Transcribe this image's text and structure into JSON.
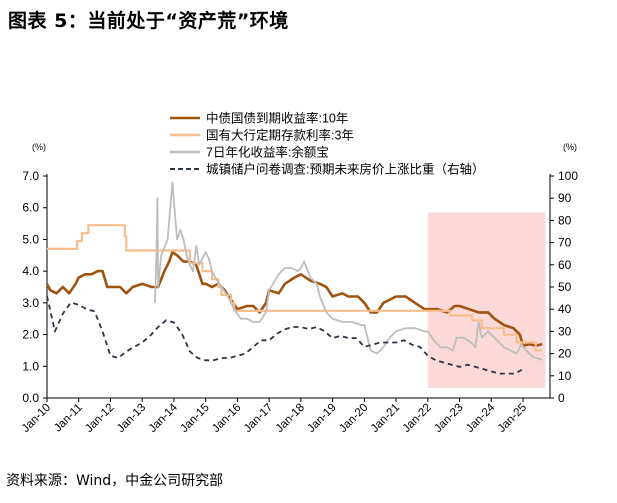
{
  "figure": {
    "title": "图表 5：当前处于“资产荒”环境",
    "source": "资料来源：Wind，中金公司研究部"
  },
  "chart_data": {
    "type": "line",
    "x_tick_labels": [
      "Jan-10",
      "Jan-11",
      "Jan-12",
      "Jan-13",
      "Jan-14",
      "Jan-15",
      "Jan-16",
      "Jan-17",
      "Jan-18",
      "Jan-19",
      "Jan-20",
      "Jan-21",
      "Jan-22",
      "Jan-23",
      "Jan-24",
      "Jan-25"
    ],
    "left_axis": {
      "unit_label": "(%)",
      "ylim": [
        0,
        7
      ],
      "ticks": [
        "0.0",
        "1.0",
        "2.0",
        "3.0",
        "4.0",
        "5.0",
        "6.0",
        "7.0"
      ]
    },
    "right_axis": {
      "unit_label": "(%)",
      "ylim": [
        0,
        100
      ],
      "ticks": [
        "0",
        "10",
        "20",
        "30",
        "40",
        "50",
        "60",
        "70",
        "80",
        "90",
        "100"
      ]
    },
    "shaded_region": {
      "x_start": 2022.0,
      "x_end": 2025.7,
      "y_top_left_axis": 5.85,
      "color": "#fbd9d9"
    },
    "grid": false,
    "legend_position": "top-center",
    "series": [
      {
        "name": "中债国债到期收益率:10年",
        "axis": "left",
        "color": "#a0520f",
        "style": "solid",
        "width": 2.6,
        "points": [
          [
            2010.0,
            3.6
          ],
          [
            2010.1,
            3.4
          ],
          [
            2010.3,
            3.3
          ],
          [
            2010.5,
            3.5
          ],
          [
            2010.7,
            3.3
          ],
          [
            2010.9,
            3.6
          ],
          [
            2011.0,
            3.8
          ],
          [
            2011.2,
            3.9
          ],
          [
            2011.4,
            3.9
          ],
          [
            2011.6,
            4.0
          ],
          [
            2011.75,
            4.0
          ],
          [
            2011.9,
            3.5
          ],
          [
            2012.0,
            3.5
          ],
          [
            2012.3,
            3.5
          ],
          [
            2012.5,
            3.3
          ],
          [
            2012.7,
            3.5
          ],
          [
            2013.0,
            3.6
          ],
          [
            2013.3,
            3.5
          ],
          [
            2013.5,
            3.5
          ],
          [
            2013.7,
            4.0
          ],
          [
            2013.85,
            4.3
          ],
          [
            2013.95,
            4.6
          ],
          [
            2014.1,
            4.5
          ],
          [
            2014.3,
            4.3
          ],
          [
            2014.5,
            4.3
          ],
          [
            2014.7,
            4.2
          ],
          [
            2014.9,
            3.6
          ],
          [
            2015.0,
            3.6
          ],
          [
            2015.2,
            3.5
          ],
          [
            2015.4,
            3.6
          ],
          [
            2015.6,
            3.4
          ],
          [
            2015.8,
            3.1
          ],
          [
            2016.0,
            2.8
          ],
          [
            2016.3,
            2.9
          ],
          [
            2016.5,
            2.9
          ],
          [
            2016.7,
            2.7
          ],
          [
            2016.9,
            3.0
          ],
          [
            2017.0,
            3.4
          ],
          [
            2017.3,
            3.3
          ],
          [
            2017.5,
            3.6
          ],
          [
            2017.8,
            3.8
          ],
          [
            2018.0,
            3.9
          ],
          [
            2018.3,
            3.7
          ],
          [
            2018.6,
            3.6
          ],
          [
            2018.8,
            3.5
          ],
          [
            2019.0,
            3.2
          ],
          [
            2019.3,
            3.3
          ],
          [
            2019.5,
            3.2
          ],
          [
            2019.8,
            3.2
          ],
          [
            2020.0,
            3.0
          ],
          [
            2020.2,
            2.7
          ],
          [
            2020.4,
            2.7
          ],
          [
            2020.6,
            3.0
          ],
          [
            2020.8,
            3.1
          ],
          [
            2021.0,
            3.2
          ],
          [
            2021.3,
            3.2
          ],
          [
            2021.6,
            3.0
          ],
          [
            2021.9,
            2.8
          ],
          [
            2022.0,
            2.8
          ],
          [
            2022.3,
            2.8
          ],
          [
            2022.6,
            2.7
          ],
          [
            2022.85,
            2.9
          ],
          [
            2023.0,
            2.9
          ],
          [
            2023.3,
            2.8
          ],
          [
            2023.6,
            2.7
          ],
          [
            2023.9,
            2.7
          ],
          [
            2024.1,
            2.5
          ],
          [
            2024.4,
            2.3
          ],
          [
            2024.7,
            2.2
          ],
          [
            2024.9,
            2.0
          ],
          [
            2025.0,
            1.65
          ],
          [
            2025.2,
            1.7
          ],
          [
            2025.4,
            1.65
          ],
          [
            2025.6,
            1.7
          ]
        ]
      },
      {
        "name": "国有大行定期存款利率:3年",
        "axis": "left",
        "color": "#f6be8c",
        "style": "solid",
        "width": 2.2,
        "points": [
          [
            2010.0,
            4.7
          ],
          [
            2010.95,
            4.7
          ],
          [
            2010.95,
            4.95
          ],
          [
            2011.1,
            4.95
          ],
          [
            2011.1,
            5.2
          ],
          [
            2011.3,
            5.2
          ],
          [
            2011.3,
            5.45
          ],
          [
            2012.45,
            5.45
          ],
          [
            2012.45,
            5.1
          ],
          [
            2012.5,
            5.1
          ],
          [
            2012.5,
            4.65
          ],
          [
            2014.5,
            4.65
          ],
          [
            2014.5,
            4.25
          ],
          [
            2014.9,
            4.25
          ],
          [
            2014.9,
            4.0
          ],
          [
            2015.2,
            4.0
          ],
          [
            2015.2,
            3.75
          ],
          [
            2015.4,
            3.75
          ],
          [
            2015.4,
            3.5
          ],
          [
            2015.5,
            3.5
          ],
          [
            2015.5,
            3.25
          ],
          [
            2015.8,
            3.25
          ],
          [
            2015.8,
            3.0
          ],
          [
            2015.9,
            3.0
          ],
          [
            2015.9,
            2.75
          ],
          [
            2022.7,
            2.75
          ],
          [
            2022.7,
            2.6
          ],
          [
            2023.4,
            2.6
          ],
          [
            2023.4,
            2.45
          ],
          [
            2023.7,
            2.45
          ],
          [
            2023.7,
            2.2
          ],
          [
            2024.4,
            2.2
          ],
          [
            2024.4,
            2.0
          ],
          [
            2024.8,
            2.0
          ],
          [
            2024.8,
            1.75
          ],
          [
            2025.4,
            1.75
          ],
          [
            2025.4,
            1.5
          ],
          [
            2025.6,
            1.5
          ]
        ]
      },
      {
        "name": "7日年化收益率:余额宝",
        "axis": "left",
        "color": "#bdbdbd",
        "style": "solid",
        "width": 1.8,
        "points": [
          [
            2013.4,
            3.0
          ],
          [
            2013.45,
            4.5
          ],
          [
            2013.48,
            6.3
          ],
          [
            2013.5,
            3.5
          ],
          [
            2013.6,
            4.5
          ],
          [
            2013.8,
            5.0
          ],
          [
            2013.95,
            6.8
          ],
          [
            2014.0,
            6.2
          ],
          [
            2014.1,
            5.0
          ],
          [
            2014.2,
            5.3
          ],
          [
            2014.3,
            5.0
          ],
          [
            2014.4,
            4.5
          ],
          [
            2014.5,
            4.2
          ],
          [
            2014.6,
            4.0
          ],
          [
            2014.7,
            4.8
          ],
          [
            2014.8,
            4.2
          ],
          [
            2015.0,
            4.6
          ],
          [
            2015.1,
            4.4
          ],
          [
            2015.2,
            4.0
          ],
          [
            2015.3,
            3.8
          ],
          [
            2015.5,
            3.5
          ],
          [
            2015.7,
            3.2
          ],
          [
            2015.9,
            2.8
          ],
          [
            2016.1,
            2.5
          ],
          [
            2016.3,
            2.5
          ],
          [
            2016.5,
            2.4
          ],
          [
            2016.7,
            2.4
          ],
          [
            2016.9,
            2.7
          ],
          [
            2017.0,
            3.4
          ],
          [
            2017.3,
            3.9
          ],
          [
            2017.5,
            4.1
          ],
          [
            2017.7,
            4.1
          ],
          [
            2017.9,
            4.0
          ],
          [
            2018.0,
            4.1
          ],
          [
            2018.1,
            4.3
          ],
          [
            2018.3,
            3.8
          ],
          [
            2018.5,
            3.6
          ],
          [
            2018.6,
            3.2
          ],
          [
            2018.8,
            2.7
          ],
          [
            2019.0,
            2.5
          ],
          [
            2019.3,
            2.4
          ],
          [
            2019.6,
            2.4
          ],
          [
            2019.9,
            2.3
          ],
          [
            2020.0,
            2.3
          ],
          [
            2020.2,
            1.5
          ],
          [
            2020.4,
            1.4
          ],
          [
            2020.6,
            1.6
          ],
          [
            2020.8,
            1.9
          ],
          [
            2021.0,
            2.1
          ],
          [
            2021.3,
            2.2
          ],
          [
            2021.6,
            2.2
          ],
          [
            2021.9,
            2.1
          ],
          [
            2022.0,
            2.1
          ],
          [
            2022.2,
            1.8
          ],
          [
            2022.4,
            1.6
          ],
          [
            2022.6,
            1.6
          ],
          [
            2022.8,
            1.5
          ],
          [
            2022.9,
            1.9
          ],
          [
            2023.1,
            1.9
          ],
          [
            2023.3,
            1.8
          ],
          [
            2023.5,
            1.6
          ],
          [
            2023.6,
            2.4
          ],
          [
            2023.7,
            1.9
          ],
          [
            2023.9,
            2.1
          ],
          [
            2024.0,
            2.0
          ],
          [
            2024.2,
            1.8
          ],
          [
            2024.4,
            1.6
          ],
          [
            2024.6,
            1.5
          ],
          [
            2024.8,
            1.4
          ],
          [
            2024.95,
            1.7
          ],
          [
            2025.1,
            1.5
          ],
          [
            2025.3,
            1.3
          ],
          [
            2025.6,
            1.2
          ]
        ]
      },
      {
        "name": "城镇储户问卷调查:预期未来房价上涨比重（右轴）",
        "axis": "right",
        "color": "#2b3542",
        "style": "dashed",
        "width": 1.8,
        "points": [
          [
            2010.0,
            46
          ],
          [
            2010.25,
            30
          ],
          [
            2010.5,
            38
          ],
          [
            2010.75,
            43
          ],
          [
            2011.0,
            42
          ],
          [
            2011.25,
            40
          ],
          [
            2011.5,
            39
          ],
          [
            2011.75,
            30
          ],
          [
            2012.0,
            19
          ],
          [
            2012.25,
            18
          ],
          [
            2012.5,
            21
          ],
          [
            2012.75,
            23
          ],
          [
            2013.0,
            25
          ],
          [
            2013.25,
            28
          ],
          [
            2013.5,
            32
          ],
          [
            2013.75,
            35
          ],
          [
            2014.0,
            34
          ],
          [
            2014.25,
            29
          ],
          [
            2014.5,
            21
          ],
          [
            2014.75,
            18
          ],
          [
            2015.0,
            17
          ],
          [
            2015.25,
            17
          ],
          [
            2015.5,
            18
          ],
          [
            2015.75,
            18
          ],
          [
            2016.0,
            19
          ],
          [
            2016.25,
            20
          ],
          [
            2016.5,
            23
          ],
          [
            2016.75,
            26
          ],
          [
            2017.0,
            26
          ],
          [
            2017.25,
            29
          ],
          [
            2017.5,
            31
          ],
          [
            2017.75,
            32
          ],
          [
            2018.0,
            32
          ],
          [
            2018.25,
            31
          ],
          [
            2018.5,
            32
          ],
          [
            2018.75,
            30
          ],
          [
            2019.0,
            27
          ],
          [
            2019.25,
            28
          ],
          [
            2019.5,
            27
          ],
          [
            2019.75,
            27
          ],
          [
            2020.0,
            23
          ],
          [
            2020.25,
            24
          ],
          [
            2020.5,
            25
          ],
          [
            2020.75,
            25
          ],
          [
            2021.0,
            25
          ],
          [
            2021.25,
            26
          ],
          [
            2021.5,
            24
          ],
          [
            2021.75,
            23
          ],
          [
            2022.0,
            19
          ],
          [
            2022.25,
            17
          ],
          [
            2022.5,
            16
          ],
          [
            2022.75,
            15
          ],
          [
            2023.0,
            14
          ],
          [
            2023.25,
            15
          ],
          [
            2023.5,
            14
          ],
          [
            2023.75,
            13
          ],
          [
            2024.0,
            12
          ],
          [
            2024.25,
            11
          ],
          [
            2024.5,
            11
          ],
          [
            2024.75,
            11
          ],
          [
            2025.0,
            13
          ]
        ]
      }
    ]
  }
}
